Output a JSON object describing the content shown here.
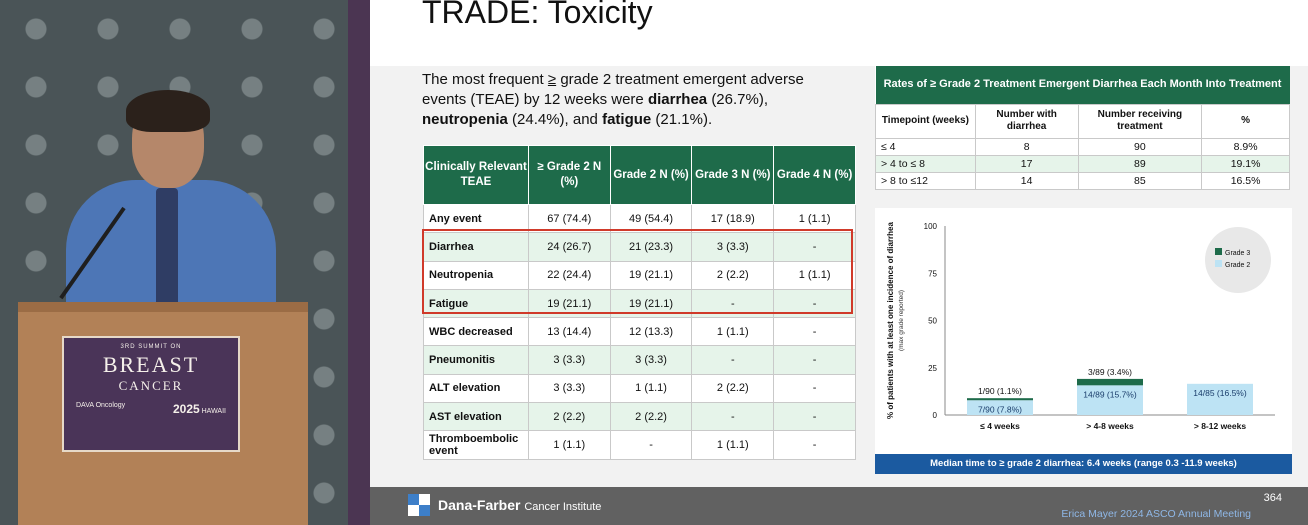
{
  "slide": {
    "title": "TRADE: Toxicity",
    "intro": {
      "p1": "The most frequent",
      "ge": "≥",
      "p2": "grade 2 treatment emergent adverse events (TEAE) by 12 weeks were",
      "diarrhea": "diarrhea",
      "diarrhea_val": "(26.7%),",
      "neutropenia": "neutropenia",
      "neutropenia_val": "(24.4%), and",
      "fatigue": "fatigue",
      "fatigue_val": "(21.1%)."
    }
  },
  "teae_table": {
    "headers": [
      "Clinically Relevant TEAE",
      "≥ Grade 2 N (%)",
      "Grade 2 N (%)",
      "Grade 3 N (%)",
      "Grade 4 N (%)"
    ],
    "rows": [
      [
        "Any event",
        "67 (74.4)",
        "49 (54.4)",
        "17 (18.9)",
        "1 (1.1)"
      ],
      [
        "Diarrhea",
        "24 (26.7)",
        "21 (23.3)",
        "3 (3.3)",
        "-"
      ],
      [
        "Neutropenia",
        "22 (24.4)",
        "19 (21.1)",
        "2 (2.2)",
        "1 (1.1)"
      ],
      [
        "Fatigue",
        "19 (21.1)",
        "19 (21.1)",
        "-",
        "-"
      ],
      [
        "WBC decreased",
        "13 (14.4)",
        "12 (13.3)",
        "1 (1.1)",
        "-"
      ],
      [
        "Pneumonitis",
        "3 (3.3)",
        "3 (3.3)",
        "-",
        "-"
      ],
      [
        "ALT elevation",
        "3 (3.3)",
        "1 (1.1)",
        "2 (2.2)",
        "-"
      ],
      [
        "AST elevation",
        "2 (2.2)",
        "2 (2.2)",
        "-",
        "-"
      ],
      [
        "Thromboembolic event",
        "1 (1.1)",
        "-",
        "1 (1.1)",
        "-"
      ]
    ]
  },
  "rates_table": {
    "caption": "Rates of ≥ Grade 2 Treatment Emergent Diarrhea Each Month Into Treatment",
    "headers": [
      "Timepoint (weeks)",
      "Number with diarrhea",
      "Number receiving treatment",
      "%"
    ],
    "rows": [
      [
        "≤ 4",
        "8",
        "90",
        "8.9%"
      ],
      [
        "> 4 to ≤ 8",
        "17",
        "89",
        "19.1%"
      ],
      [
        "> 8 to ≤12",
        "14",
        "85",
        "16.5%"
      ]
    ]
  },
  "chart_data": {
    "type": "bar",
    "ylabel": "% of patients with at least one incidence of diarrhea",
    "ylabel_sub": "(max grade reported)",
    "ylim": [
      0,
      100
    ],
    "yticks": [
      0,
      25,
      50,
      75,
      100
    ],
    "categories": [
      "≤ 4 weeks",
      "> 4-8 weeks",
      "> 8-12 weeks"
    ],
    "stacked": true,
    "legend_position": "top-right",
    "series": [
      {
        "name": "Grade 2",
        "values": [
          7.8,
          15.7,
          16.5
        ],
        "color": "#bde3f4",
        "labels": [
          "7/90 (7.8%)",
          "14/89 (15.7%)",
          "14/85 (16.5%)"
        ]
      },
      {
        "name": "Grade 3",
        "values": [
          1.1,
          3.4,
          0
        ],
        "color": "#1e6b4a",
        "labels": [
          "1/90 (1.1%)",
          "3/89 (3.4%)",
          ""
        ]
      }
    ]
  },
  "median_text": "Median time to ≥ grade 2 diarrhea: 6.4 weeks (range 0.3 -11.9 weeks)",
  "footer": {
    "org": "Dana-Farber",
    "org_sub": "Cancer Institute",
    "page": "364",
    "credit": "Erica Mayer 2024 ASCO Annual Meeting"
  },
  "podium": {
    "small": "3RD SUMMIT ON",
    "line1": "BREAST",
    "line2": "CANCER",
    "left_brand": "DAVA Oncology",
    "year": "2025",
    "right_brand": "HAWAII"
  }
}
